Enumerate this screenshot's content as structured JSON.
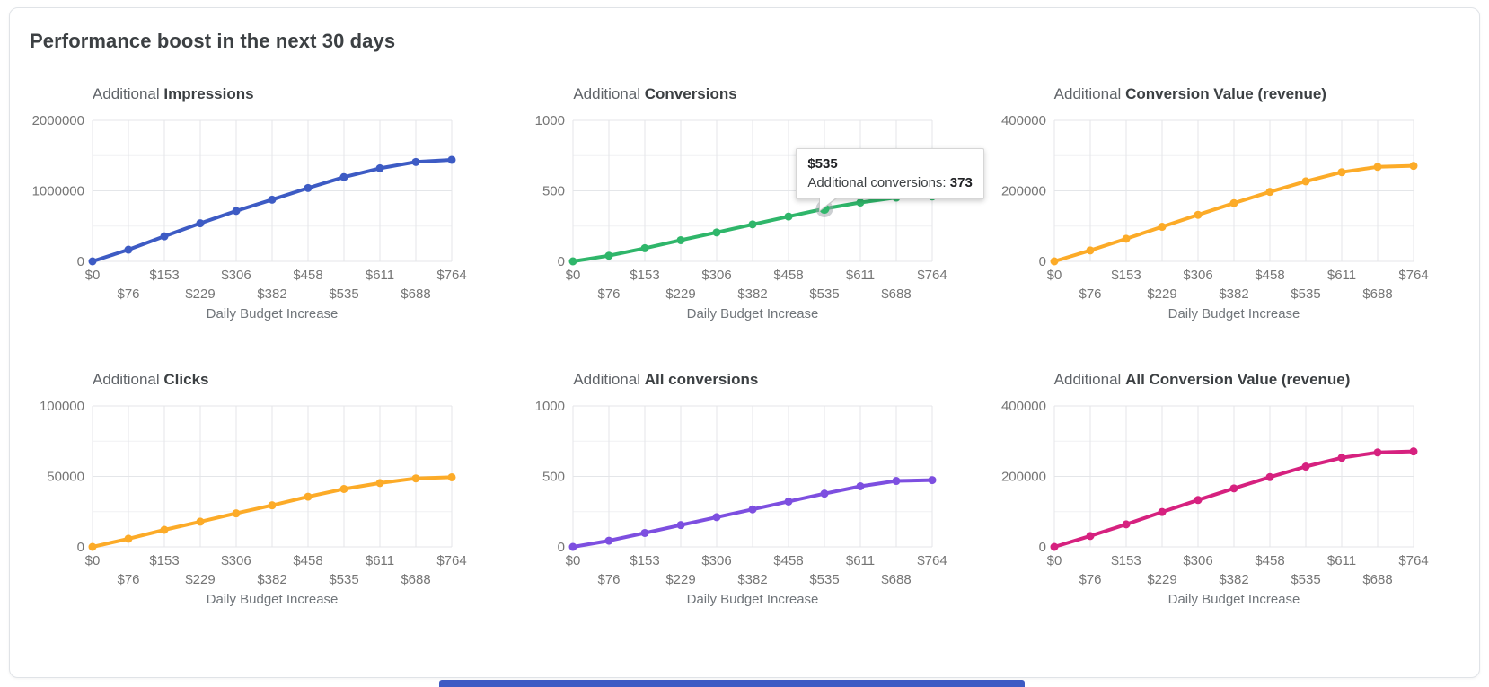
{
  "page": {
    "title": "Performance boost in the next 30 days"
  },
  "xaxis": {
    "title": "Daily Budget Increase",
    "labels": [
      "$0",
      "$76",
      "$153",
      "$229",
      "$306",
      "$382",
      "$458",
      "$535",
      "$611",
      "$688",
      "$764"
    ]
  },
  "chart_data": [
    {
      "type": "line",
      "title_prefix": "Additional",
      "title_metric": "Impressions",
      "color": "#3d5bc4",
      "ylim": [
        0,
        2000000
      ],
      "ytick_labels": [
        "0",
        "1000000",
        "2000000"
      ],
      "x_categories": [
        "$0",
        "$76",
        "$153",
        "$229",
        "$306",
        "$382",
        "$458",
        "$535",
        "$611",
        "$688",
        "$764"
      ],
      "values": [
        0,
        165000,
        355000,
        540000,
        715000,
        875000,
        1040000,
        1195000,
        1320000,
        1410000,
        1440000
      ],
      "xlabel": "Daily Budget Increase",
      "ylabel": "",
      "grid": true,
      "legend": false
    },
    {
      "type": "line",
      "title_prefix": "Additional",
      "title_metric": "Conversions",
      "color": "#2fb66a",
      "ylim": [
        0,
        1000
      ],
      "ytick_labels": [
        "0",
        "500",
        "1000"
      ],
      "x_categories": [
        "$0",
        "$76",
        "$153",
        "$229",
        "$306",
        "$382",
        "$458",
        "$535",
        "$611",
        "$688",
        "$764"
      ],
      "values": [
        0,
        40,
        93,
        150,
        205,
        262,
        318,
        373,
        417,
        452,
        460
      ],
      "xlabel": "Daily Budget Increase",
      "ylabel": "",
      "grid": true,
      "legend": false
    },
    {
      "type": "line",
      "title_prefix": "Additional",
      "title_metric": "Conversion Value (revenue)",
      "color": "#fcab28",
      "ylim": [
        0,
        400000
      ],
      "ytick_labels": [
        "0",
        "200000",
        "400000"
      ],
      "x_categories": [
        "$0",
        "$76",
        "$153",
        "$229",
        "$306",
        "$382",
        "$458",
        "$535",
        "$611",
        "$688",
        "$764"
      ],
      "values": [
        0,
        31000,
        64000,
        98000,
        132000,
        165000,
        197000,
        227000,
        253000,
        268000,
        271000
      ],
      "xlabel": "Daily Budget Increase",
      "ylabel": "",
      "grid": true,
      "legend": false
    },
    {
      "type": "line",
      "title_prefix": "Additional",
      "title_metric": "Clicks",
      "color": "#fcab28",
      "ylim": [
        0,
        100000
      ],
      "ytick_labels": [
        "0",
        "50000",
        "100000"
      ],
      "x_categories": [
        "$0",
        "$76",
        "$153",
        "$229",
        "$306",
        "$382",
        "$458",
        "$535",
        "$611",
        "$688",
        "$764"
      ],
      "values": [
        0,
        5800,
        12100,
        17900,
        23800,
        29500,
        35600,
        41100,
        45300,
        48600,
        49400
      ],
      "xlabel": "Daily Budget Increase",
      "ylabel": "",
      "grid": true,
      "legend": false
    },
    {
      "type": "line",
      "title_prefix": "Additional",
      "title_metric": "All conversions",
      "color": "#7d4fe0",
      "ylim": [
        0,
        1000
      ],
      "ytick_labels": [
        "0",
        "500",
        "1000"
      ],
      "x_categories": [
        "$0",
        "$76",
        "$153",
        "$229",
        "$306",
        "$382",
        "$458",
        "$535",
        "$611",
        "$688",
        "$764"
      ],
      "values": [
        0,
        44,
        99,
        155,
        211,
        266,
        322,
        378,
        430,
        468,
        474
      ],
      "xlabel": "Daily Budget Increase",
      "ylabel": "",
      "grid": true,
      "legend": false
    },
    {
      "type": "line",
      "title_prefix": "Additional",
      "title_metric": "All Conversion Value (revenue)",
      "color": "#d6217f",
      "ylim": [
        0,
        400000
      ],
      "ytick_labels": [
        "0",
        "200000",
        "400000"
      ],
      "x_categories": [
        "$0",
        "$76",
        "$153",
        "$229",
        "$306",
        "$382",
        "$458",
        "$535",
        "$611",
        "$688",
        "$764"
      ],
      "values": [
        0,
        31000,
        64000,
        99000,
        133000,
        166000,
        198000,
        228000,
        253000,
        268000,
        271000
      ],
      "xlabel": "Daily Budget Increase",
      "ylabel": "",
      "grid": true,
      "legend": false
    }
  ],
  "tooltip": {
    "chart_index": 1,
    "point_index": 7,
    "title": "$535",
    "label": "Additional conversions: ",
    "value": "373"
  },
  "colors": {
    "grid_major": "#e4e6e9",
    "grid_minor": "#f0f1f3",
    "halo": "#9aa0a6",
    "bottom_bar": "#3d5bc4"
  }
}
